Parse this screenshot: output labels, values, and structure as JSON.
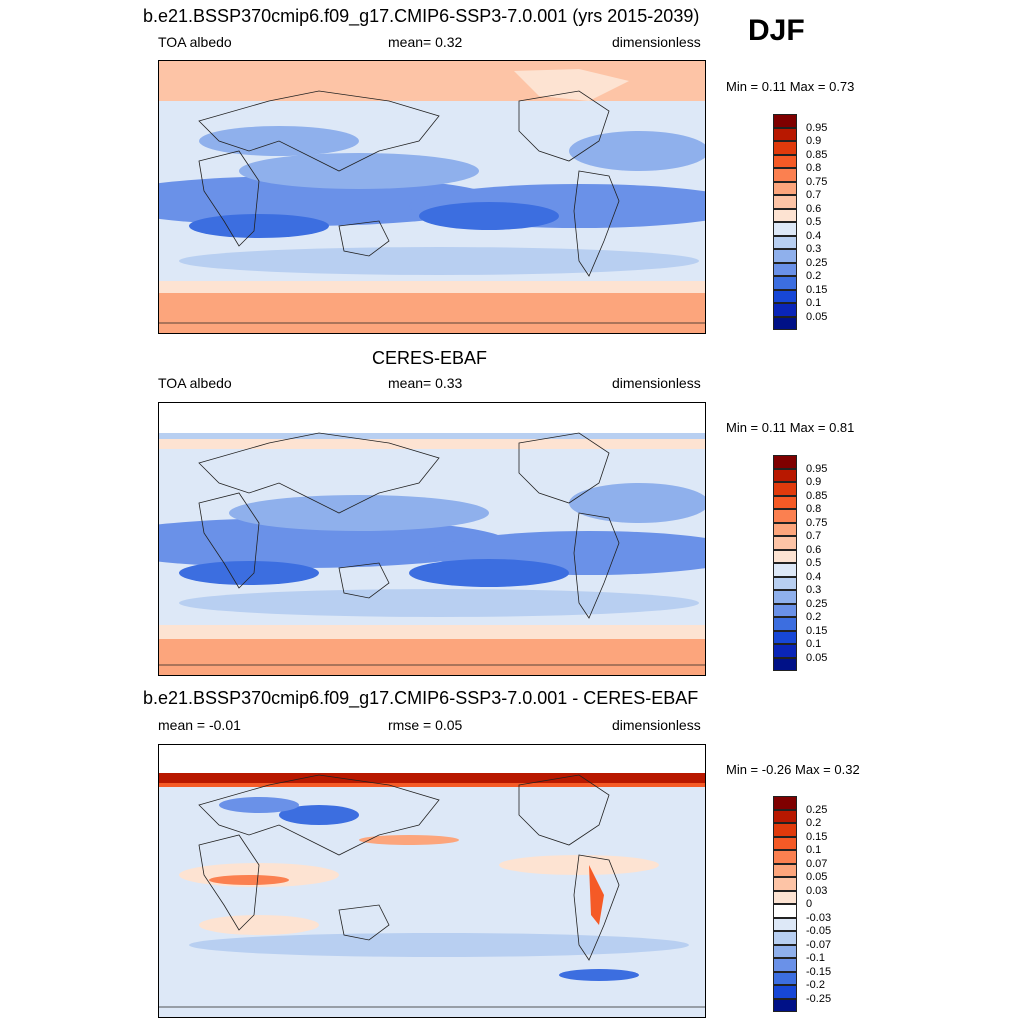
{
  "season": "DJF",
  "panels": [
    {
      "title": "b.e21.BSSP370cmip6.f09_g17.CMIP6-SSP3-7.0.001 (yrs 2015-2039)",
      "left_label": "TOA albedo",
      "center_label": "mean=   0.32",
      "right_label": "dimensionless",
      "minmax": "Min =   0.11 Max =   0.73",
      "colorbar": {
        "levels": [
          "0.95",
          "0.9",
          "0.85",
          "0.8",
          "0.75",
          "0.7",
          "0.6",
          "0.5",
          "0.4",
          "0.3",
          "0.25",
          "0.2",
          "0.15",
          "0.1",
          "0.05"
        ],
        "colors": [
          "#7f0000",
          "#b81800",
          "#e03a0c",
          "#f55a26",
          "#fb8050",
          "#fca57c",
          "#fdc4a6",
          "#fde3d2",
          "#dde8f7",
          "#b8cff1",
          "#8fb0ec",
          "#6a91e8",
          "#3c6ee0",
          "#1747d6",
          "#0a25b8",
          "#001187"
        ]
      }
    },
    {
      "title": "CERES-EBAF",
      "left_label": "TOA albedo",
      "center_label": "mean=   0.33",
      "right_label": "dimensionless",
      "minmax": "Min =   0.11 Max =   0.81",
      "colorbar": {
        "levels": [
          "0.95",
          "0.9",
          "0.85",
          "0.8",
          "0.75",
          "0.7",
          "0.6",
          "0.5",
          "0.4",
          "0.3",
          "0.25",
          "0.2",
          "0.15",
          "0.1",
          "0.05"
        ],
        "colors": [
          "#7f0000",
          "#b81800",
          "#e03a0c",
          "#f55a26",
          "#fb8050",
          "#fca57c",
          "#fdc4a6",
          "#fde3d2",
          "#dde8f7",
          "#b8cff1",
          "#8fb0ec",
          "#6a91e8",
          "#3c6ee0",
          "#1747d6",
          "#0a25b8",
          "#001187"
        ]
      }
    },
    {
      "title": "b.e21.BSSP370cmip6.f09_g17.CMIP6-SSP3-7.0.001 - CERES-EBAF",
      "left_label": "mean =  -0.01",
      "center_label": "rmse =   0.05",
      "right_label": "dimensionless",
      "minmax": "Min =  -0.26 Max =   0.32",
      "colorbar": {
        "levels": [
          "0.25",
          "0.2",
          "0.15",
          "0.1",
          "0.07",
          "0.05",
          "0.03",
          "0",
          "-0.03",
          "-0.05",
          "-0.07",
          "-0.1",
          "-0.15",
          "-0.2",
          "-0.25"
        ],
        "colors": [
          "#7f0000",
          "#b81800",
          "#e03a0c",
          "#f55a26",
          "#fb8050",
          "#fca57c",
          "#fdc4a6",
          "#fde3d2",
          "#ffffff",
          "#dde8f7",
          "#b8cff1",
          "#8fb0ec",
          "#6a91e8",
          "#3c6ee0",
          "#1747d6",
          "#001187"
        ]
      }
    }
  ]
}
